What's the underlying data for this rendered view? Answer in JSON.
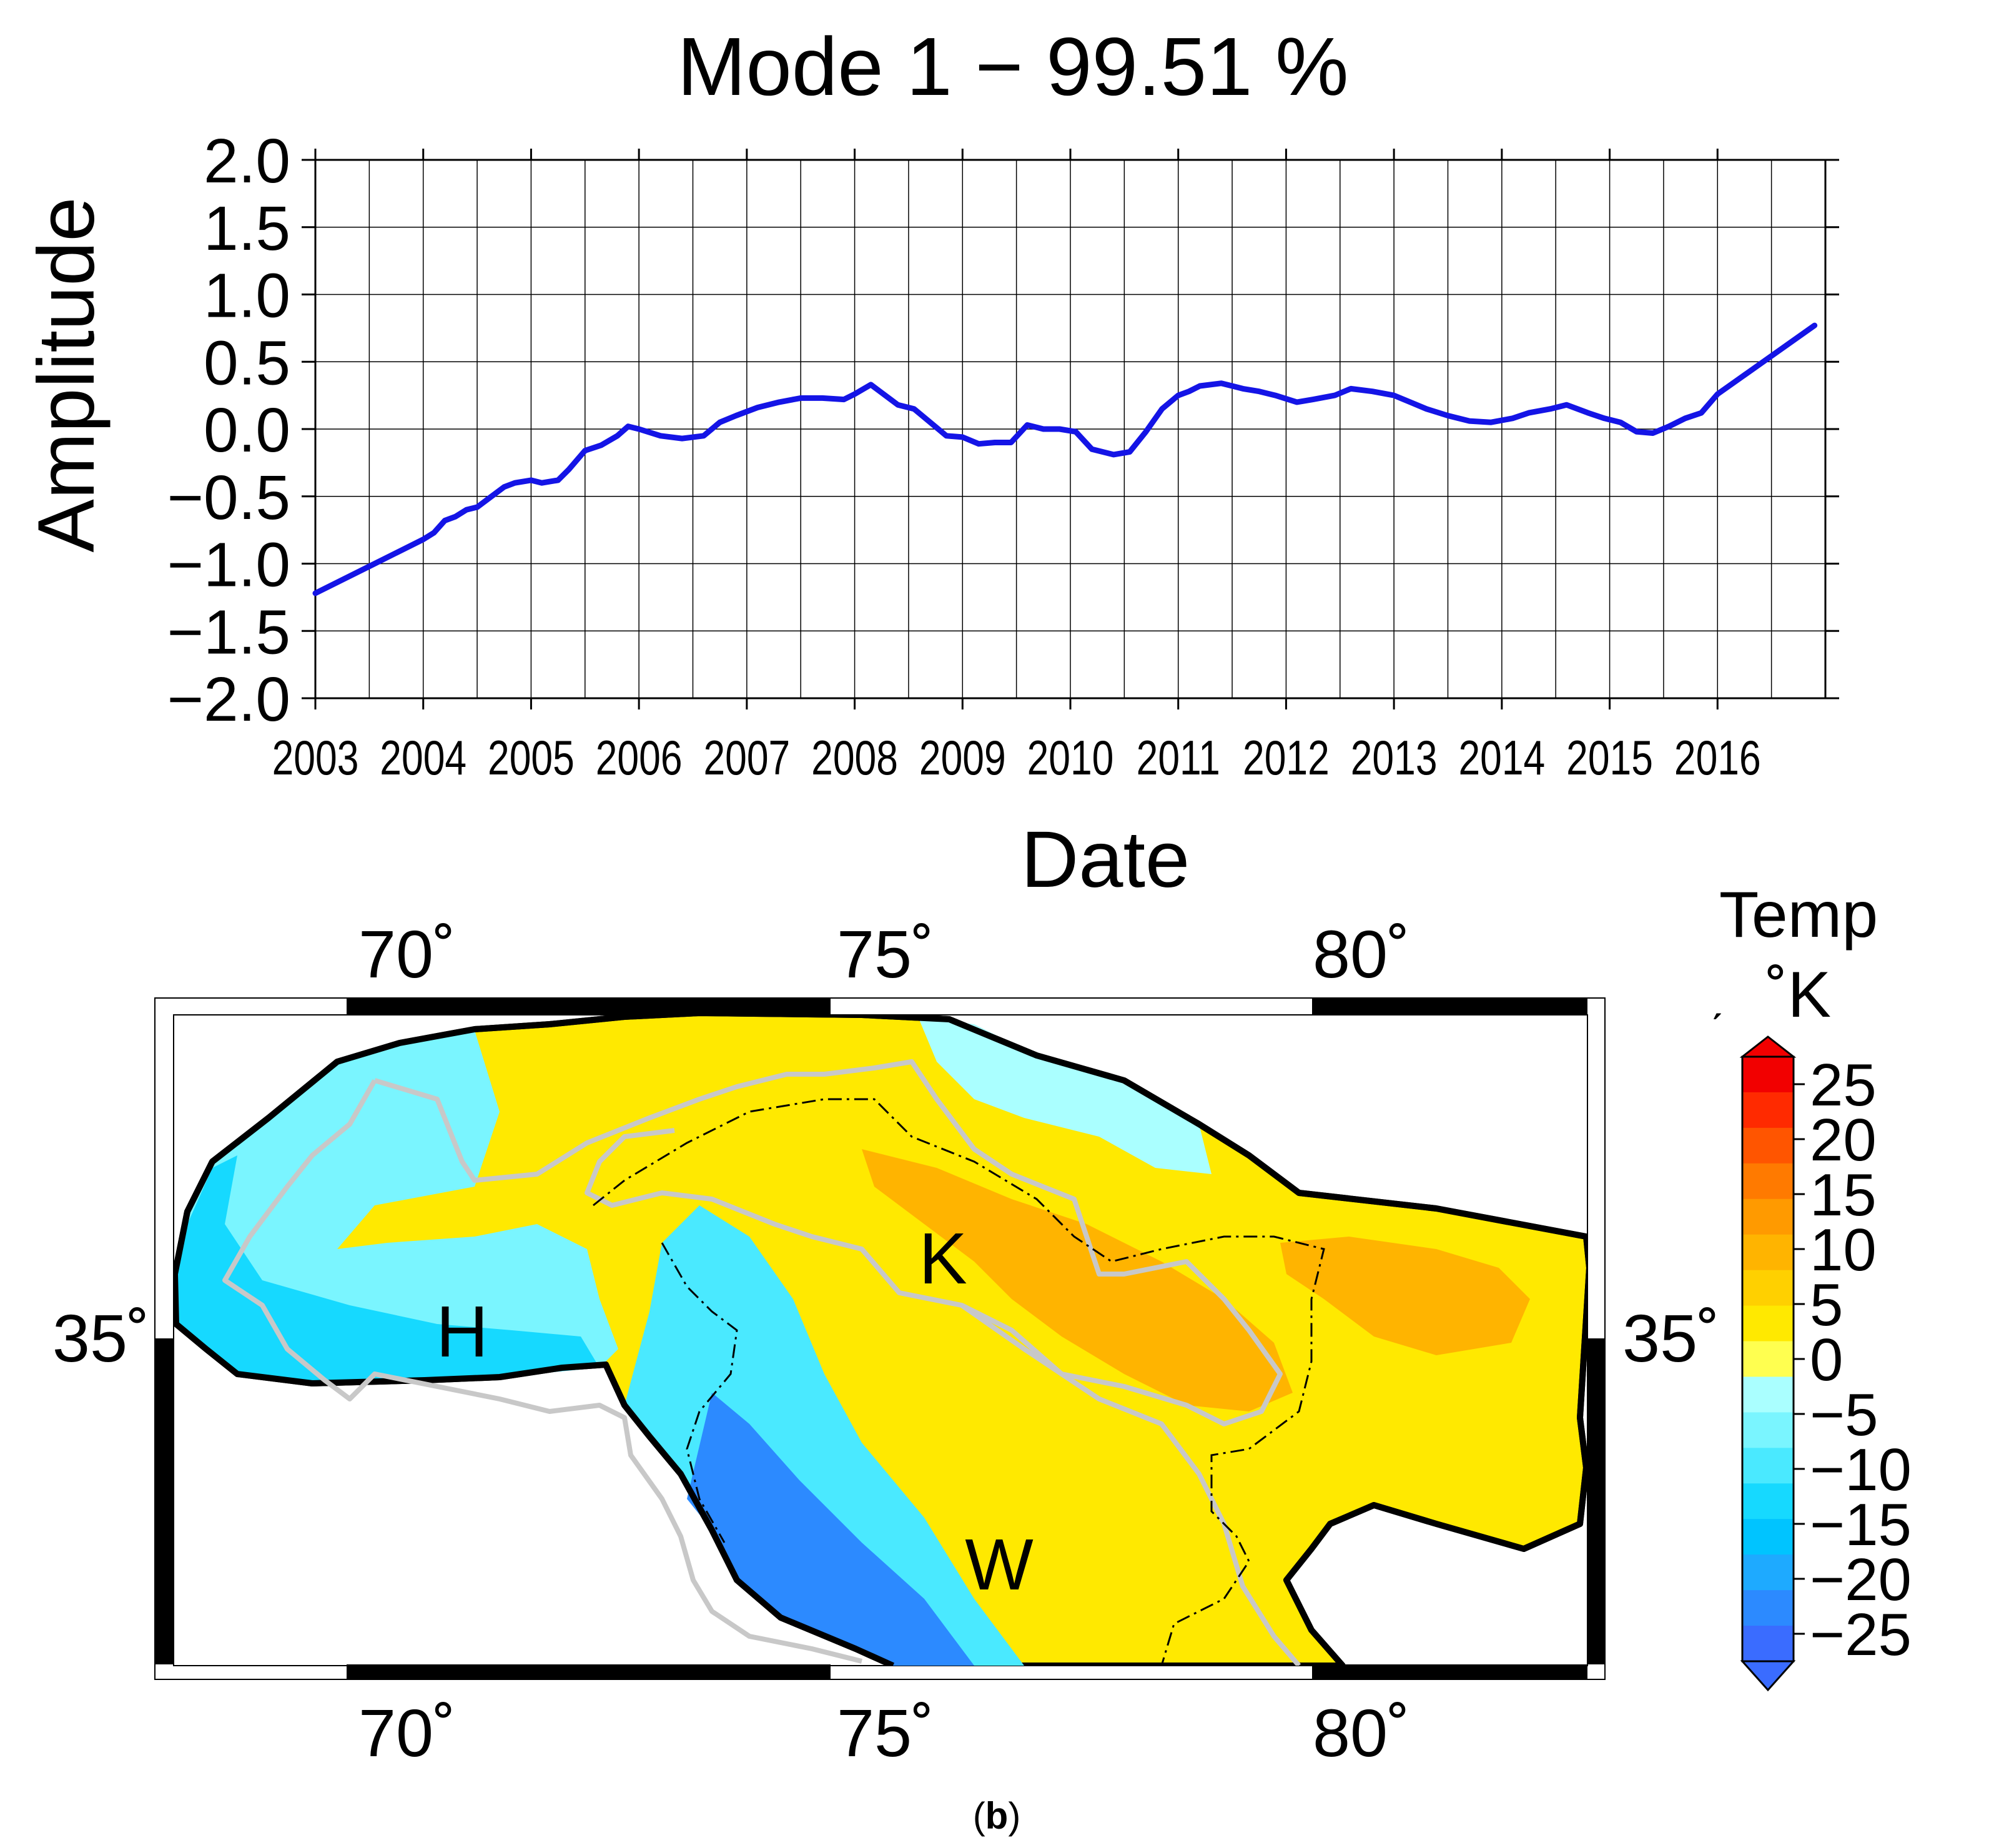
{
  "chart_data": [
    {
      "type": "line",
      "title": "Mode 1 − 99.51 %",
      "xlabel": "Date",
      "ylabel": "Amplitude",
      "ylim": [
        -2.0,
        2.0
      ],
      "xlim": [
        2003.0,
        2017.0
      ],
      "y_ticks": [
        "2.0",
        "1.5",
        "1.0",
        "0.5",
        "0.0",
        "−0.5",
        "−1.0",
        "−1.5",
        "−2.0"
      ],
      "x_ticks": [
        "2003",
        "2004",
        "2005",
        "2006",
        "2007",
        "2008",
        "2009",
        "2010",
        "2011",
        "2012",
        "2013",
        "2014",
        "2015",
        "2016"
      ],
      "grid": true,
      "series": [
        {
          "name": "Mode 1",
          "color": "#1414e6",
          "x": [
            2003.0,
            2003.5,
            2004.0,
            2004.1,
            2004.2,
            2004.3,
            2004.4,
            2004.5,
            2004.6,
            2004.75,
            2004.85,
            2005.0,
            2005.1,
            2005.25,
            2005.35,
            2005.5,
            2005.65,
            2005.8,
            2005.9,
            2006.0,
            2006.2,
            2006.4,
            2006.6,
            2006.75,
            2006.9,
            2007.1,
            2007.3,
            2007.5,
            2007.7,
            2007.9,
            2008.0,
            2008.15,
            2008.25,
            2008.4,
            2008.55,
            2008.7,
            2008.85,
            2009.0,
            2009.15,
            2009.3,
            2009.45,
            2009.6,
            2009.75,
            2009.9,
            2010.05,
            2010.2,
            2010.4,
            2010.55,
            2010.7,
            2010.85,
            2011.0,
            2011.1,
            2011.2,
            2011.4,
            2011.5,
            2011.6,
            2011.75,
            2011.9,
            2012.1,
            2012.25,
            2012.45,
            2012.6,
            2012.8,
            2013.0,
            2013.15,
            2013.3,
            2013.5,
            2013.7,
            2013.9,
            2014.1,
            2014.25,
            2014.45,
            2014.6,
            2014.8,
            2014.95,
            2015.1,
            2015.25,
            2015.4,
            2015.55,
            2015.7,
            2015.85,
            2016.0,
            2016.9
          ],
          "values": [
            -1.22,
            -1.02,
            -0.82,
            -0.77,
            -0.68,
            -0.65,
            -0.6,
            -0.58,
            -0.52,
            -0.43,
            -0.4,
            -0.38,
            -0.4,
            -0.38,
            -0.3,
            -0.16,
            -0.12,
            -0.05,
            0.02,
            0.0,
            -0.05,
            -0.07,
            -0.05,
            0.05,
            0.1,
            0.16,
            0.2,
            0.23,
            0.23,
            0.22,
            0.26,
            0.33,
            0.27,
            0.18,
            0.15,
            0.05,
            -0.05,
            -0.06,
            -0.11,
            -0.1,
            -0.1,
            0.03,
            0.0,
            0.0,
            -0.02,
            -0.15,
            -0.19,
            -0.17,
            -0.02,
            0.15,
            0.25,
            0.28,
            0.32,
            0.34,
            0.32,
            0.3,
            0.28,
            0.25,
            0.2,
            0.22,
            0.25,
            0.3,
            0.28,
            0.25,
            0.2,
            0.15,
            0.1,
            0.06,
            0.05,
            0.08,
            0.12,
            0.15,
            0.18,
            0.12,
            0.08,
            0.05,
            -0.02,
            -0.03,
            0.02,
            0.08,
            0.12,
            0.26,
            0.77
          ]
        }
      ]
    },
    {
      "type": "heatmap",
      "title": "",
      "x_ticks": [
        "70˚",
        "75˚",
        "80˚"
      ],
      "y_ticks": [
        "35˚"
      ],
      "lat_label": "35˚",
      "region_labels": [
        "H",
        "K",
        "W"
      ],
      "colorbar": {
        "title_line1": "Temp",
        "title_line2": "˚K",
        "unit_mark": "ˏ",
        "tick_labels": [
          "25",
          "20",
          "15",
          "10",
          "5",
          "0",
          "−5",
          "−10",
          "−15",
          "−20",
          "−25"
        ],
        "range": [
          -27.5,
          27.5
        ],
        "colors": [
          "#f20000",
          "#ff2a00",
          "#ff5500",
          "#ff7a00",
          "#ff9a00",
          "#ffb400",
          "#ffd000",
          "#ffe900",
          "#ffff50",
          "#aaffff",
          "#7af5ff",
          "#4ae9ff",
          "#16d9ff",
          "#00c4ff",
          "#1eaaff",
          "#2c8aff",
          "#3a6cff"
        ]
      }
    }
  ],
  "caption": {
    "open": "(",
    "letter": "b",
    "close": ")"
  }
}
